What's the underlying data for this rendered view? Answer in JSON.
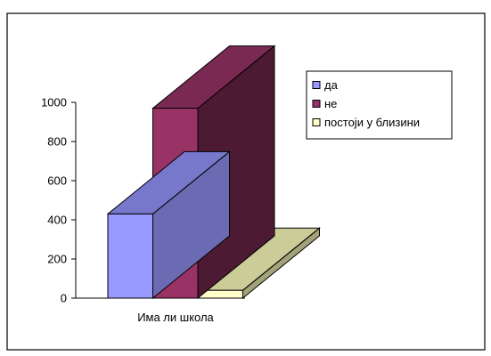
{
  "chart_data": {
    "type": "bar",
    "title": "",
    "xlabel": "",
    "ylabel": "",
    "categories": [
      "Има ли школа"
    ],
    "series": [
      {
        "name": "да",
        "values": [
          430
        ],
        "color": "#9999FF",
        "top_color": "#7777CC",
        "side_color": "#6B6BB3"
      },
      {
        "name": "не",
        "values": [
          970
        ],
        "color": "#993366",
        "top_color": "#7A2952",
        "side_color": "#4D1A33"
      },
      {
        "name": "постоји у близини",
        "values": [
          40
        ],
        "color": "#FFFFCC",
        "top_color": "#CCCC99",
        "side_color": "#A3A37A"
      }
    ],
    "ylim": [
      0,
      1000
    ],
    "yticks": [
      0,
      200,
      400,
      600,
      800,
      1000
    ],
    "legend_position": "top-right",
    "grid": false
  }
}
